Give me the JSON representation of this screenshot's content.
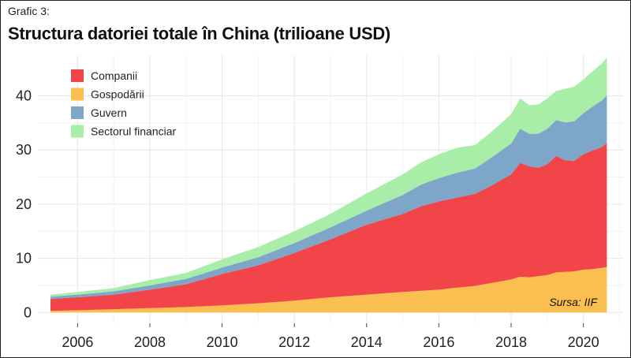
{
  "figure_label": "Grafic 3:",
  "chart_data": {
    "type": "area",
    "stacked": true,
    "title": "Structura datoriei totale în China (trilioane USD)",
    "xlabel": "",
    "ylabel": "",
    "x": [
      2005.25,
      2006.0,
      2007.0,
      2008.0,
      2009.0,
      2010.0,
      2011.0,
      2012.0,
      2013.0,
      2014.0,
      2015.0,
      2015.5,
      2016.0,
      2016.5,
      2017.0,
      2017.5,
      2018.0,
      2018.25,
      2018.5,
      2018.75,
      2019.0,
      2019.25,
      2019.5,
      2019.75,
      2020.0,
      2020.25,
      2020.5,
      2020.65
    ],
    "xlim": [
      2004.9,
      2021.1
    ],
    "ylim": [
      -2,
      47.5
    ],
    "x_ticks": [
      "2006",
      "2008",
      "2010",
      "2012",
      "2014",
      "2016",
      "2018",
      "2020"
    ],
    "y_ticks": [
      "0",
      "10",
      "20",
      "30",
      "40"
    ],
    "grid": true,
    "legend_position": "top-left",
    "series": [
      {
        "name": "Gospodării",
        "color": "#fbbf4f",
        "values": [
          0.3,
          0.4,
          0.6,
          0.8,
          1.0,
          1.3,
          1.7,
          2.2,
          2.8,
          3.3,
          3.8,
          4.0,
          4.2,
          4.6,
          4.9,
          5.5,
          6.1,
          6.6,
          6.5,
          6.7,
          6.9,
          7.4,
          7.5,
          7.6,
          7.9,
          8.0,
          8.2,
          8.4
        ]
      },
      {
        "name": "Companii",
        "color": "#f2454a",
        "values": [
          2.2,
          2.4,
          2.7,
          3.4,
          4.2,
          5.8,
          7.0,
          8.8,
          10.7,
          12.9,
          14.4,
          15.6,
          16.3,
          16.6,
          17.0,
          18.1,
          19.4,
          21.0,
          20.5,
          20.0,
          20.5,
          21.5,
          20.6,
          20.4,
          21.3,
          21.9,
          22.3,
          22.9
        ]
      },
      {
        "name": "Guvern",
        "color": "#7ea6c8",
        "values": [
          0.4,
          0.5,
          0.6,
          0.8,
          1.0,
          1.2,
          1.5,
          1.8,
          2.2,
          2.6,
          3.5,
          4.0,
          4.3,
          4.6,
          4.7,
          5.2,
          5.7,
          6.3,
          6.0,
          6.3,
          6.5,
          6.6,
          7.0,
          7.3,
          7.6,
          8.1,
          8.6,
          8.8
        ]
      },
      {
        "name": "Sectorul financiar",
        "color": "#a8eea9",
        "values": [
          0.4,
          0.5,
          0.6,
          1.0,
          1.1,
          1.5,
          1.9,
          2.2,
          2.5,
          3.2,
          3.8,
          4.1,
          4.4,
          4.6,
          4.3,
          4.8,
          5.4,
          5.6,
          5.3,
          5.4,
          5.6,
          5.4,
          6.2,
          6.4,
          6.2,
          6.5,
          6.8,
          7.0
        ]
      }
    ],
    "legend_order": [
      "Companii",
      "Gospodării",
      "Guvern",
      "Sectorul financiar"
    ],
    "annotation": "Sursa: IIF"
  }
}
